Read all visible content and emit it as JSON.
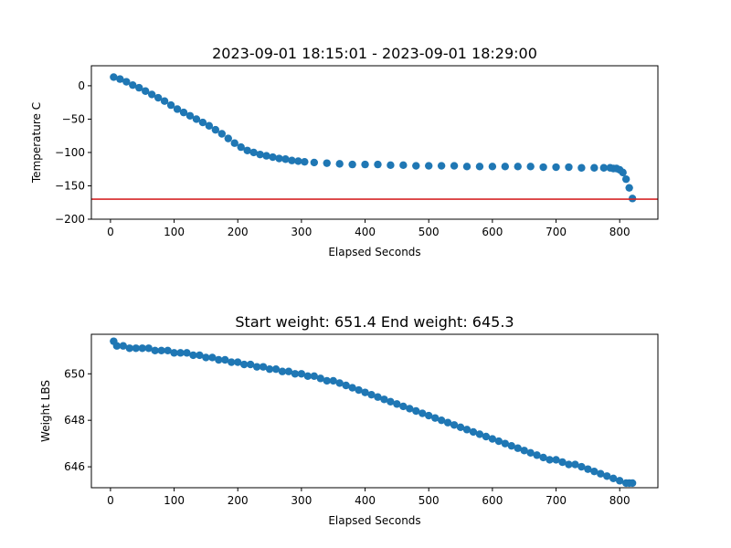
{
  "colors": {
    "marker": "#1f77b4",
    "threshold_line": "#d62728",
    "axis": "#000000"
  },
  "chart_data": [
    {
      "type": "scatter",
      "title": "2023-09-01 18:15:01 - 2023-09-01 18:29:00",
      "xlabel": "Elapsed Seconds",
      "ylabel": "Temperature C",
      "xlim": [
        -30,
        860
      ],
      "ylim": [
        -200,
        30
      ],
      "xticks": [
        0,
        100,
        200,
        300,
        400,
        500,
        600,
        700,
        800
      ],
      "yticks": [
        0,
        -50,
        -100,
        -150,
        -200
      ],
      "reference_line": {
        "orientation": "horizontal",
        "y": -170
      },
      "grid": false,
      "x": [
        5,
        15,
        25,
        35,
        45,
        55,
        65,
        75,
        85,
        95,
        105,
        115,
        125,
        135,
        145,
        155,
        165,
        175,
        185,
        195,
        205,
        215,
        225,
        235,
        245,
        255,
        265,
        275,
        285,
        295,
        305,
        320,
        340,
        360,
        380,
        400,
        420,
        440,
        460,
        480,
        500,
        520,
        540,
        560,
        580,
        600,
        620,
        640,
        660,
        680,
        700,
        720,
        740,
        760,
        775,
        785,
        790,
        795,
        800,
        805,
        810,
        815,
        820
      ],
      "y": [
        13,
        10,
        6,
        1,
        -3,
        -8,
        -13,
        -18,
        -23,
        -29,
        -35,
        -40,
        -45,
        -50,
        -55,
        -60,
        -66,
        -72,
        -79,
        -86,
        -92,
        -97,
        -100,
        -103,
        -105,
        -107,
        -109,
        -110,
        -112,
        -113,
        -114,
        -115,
        -116,
        -117,
        -118,
        -118,
        -118,
        -119,
        -119,
        -120,
        -120,
        -120,
        -120,
        -121,
        -121,
        -121,
        -121,
        -121,
        -121,
        -122,
        -122,
        -122,
        -123,
        -123,
        -123,
        -123,
        -124,
        -124,
        -126,
        -130,
        -140,
        -153,
        -169
      ]
    },
    {
      "type": "scatter",
      "title": "Start weight: 651.4 End weight: 645.3",
      "xlabel": "Elapsed Seconds",
      "ylabel": "Weight LBS",
      "xlim": [
        -30,
        860
      ],
      "ylim": [
        645.1,
        651.7
      ],
      "xticks": [
        0,
        100,
        200,
        300,
        400,
        500,
        600,
        700,
        800
      ],
      "yticks": [
        646,
        648,
        650
      ],
      "grid": false,
      "x": [
        5,
        10,
        20,
        30,
        40,
        50,
        60,
        70,
        80,
        90,
        100,
        110,
        120,
        130,
        140,
        150,
        160,
        170,
        180,
        190,
        200,
        210,
        220,
        230,
        240,
        250,
        260,
        270,
        280,
        290,
        300,
        310,
        320,
        330,
        340,
        350,
        360,
        370,
        380,
        390,
        400,
        410,
        420,
        430,
        440,
        450,
        460,
        470,
        480,
        490,
        500,
        510,
        520,
        530,
        540,
        550,
        560,
        570,
        580,
        590,
        600,
        610,
        620,
        630,
        640,
        650,
        660,
        670,
        680,
        690,
        700,
        710,
        720,
        730,
        740,
        750,
        760,
        770,
        780,
        790,
        800,
        810,
        815,
        820
      ],
      "y": [
        651.4,
        651.2,
        651.2,
        651.1,
        651.1,
        651.1,
        651.1,
        651.0,
        651.0,
        651.0,
        650.9,
        650.9,
        650.9,
        650.8,
        650.8,
        650.7,
        650.7,
        650.6,
        650.6,
        650.5,
        650.5,
        650.4,
        650.4,
        650.3,
        650.3,
        650.2,
        650.2,
        650.1,
        650.1,
        650.0,
        650.0,
        649.9,
        649.9,
        649.8,
        649.7,
        649.7,
        649.6,
        649.5,
        649.4,
        649.3,
        649.2,
        649.1,
        649.0,
        648.9,
        648.8,
        648.7,
        648.6,
        648.5,
        648.4,
        648.3,
        648.2,
        648.1,
        648.0,
        647.9,
        647.8,
        647.7,
        647.6,
        647.5,
        647.4,
        647.3,
        647.2,
        647.1,
        647.0,
        646.9,
        646.8,
        646.7,
        646.6,
        646.5,
        646.4,
        646.3,
        646.3,
        646.2,
        646.1,
        646.1,
        646.0,
        645.9,
        645.8,
        645.7,
        645.6,
        645.5,
        645.4,
        645.3,
        645.3,
        645.3
      ]
    }
  ]
}
